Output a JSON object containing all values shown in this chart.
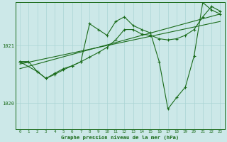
{
  "xlabel": "Graphe pression niveau de la mer (hPa)",
  "bg_color": "#cce8e8",
  "grid_color": "#aad4d4",
  "line_color": "#1a6b1a",
  "xlim": [
    -0.5,
    23.5
  ],
  "ylim": [
    1019.55,
    1021.75
  ],
  "xticks": [
    0,
    1,
    2,
    3,
    4,
    5,
    6,
    7,
    8,
    9,
    10,
    11,
    12,
    13,
    14,
    15,
    16,
    17,
    18,
    19,
    20,
    21,
    22,
    23
  ],
  "yticks": [
    1020,
    1021
  ],
  "trend1_x": [
    0,
    23
  ],
  "trend1_y": [
    1020.68,
    1021.42
  ],
  "trend2_x": [
    0,
    23
  ],
  "trend2_y": [
    1020.6,
    1021.55
  ],
  "main_x": [
    0,
    1,
    2,
    3,
    4,
    5,
    6,
    7,
    8,
    9,
    10,
    11,
    12,
    13,
    14,
    15,
    16,
    17,
    18,
    19,
    20,
    21,
    22,
    23
  ],
  "main_y": [
    1020.72,
    1020.72,
    1020.55,
    1020.43,
    1020.5,
    1020.58,
    1020.65,
    1020.72,
    1021.38,
    1021.28,
    1021.18,
    1021.42,
    1021.5,
    1021.35,
    1021.28,
    1021.22,
    1020.72,
    1019.9,
    1020.1,
    1020.28,
    1020.82,
    1021.75,
    1021.62,
    1021.55
  ],
  "smooth_x": [
    0,
    2,
    3,
    4,
    5,
    6,
    7,
    8,
    9,
    10,
    11,
    12,
    13,
    14,
    15,
    16,
    17,
    18,
    19,
    20,
    21,
    22,
    23
  ],
  "smooth_y": [
    1020.72,
    1020.55,
    1020.43,
    1020.52,
    1020.6,
    1020.65,
    1020.72,
    1020.8,
    1020.88,
    1020.97,
    1021.1,
    1021.28,
    1021.28,
    1021.2,
    1021.18,
    1021.12,
    1021.1,
    1021.12,
    1021.18,
    1021.28,
    1021.5,
    1021.68,
    1021.6
  ]
}
